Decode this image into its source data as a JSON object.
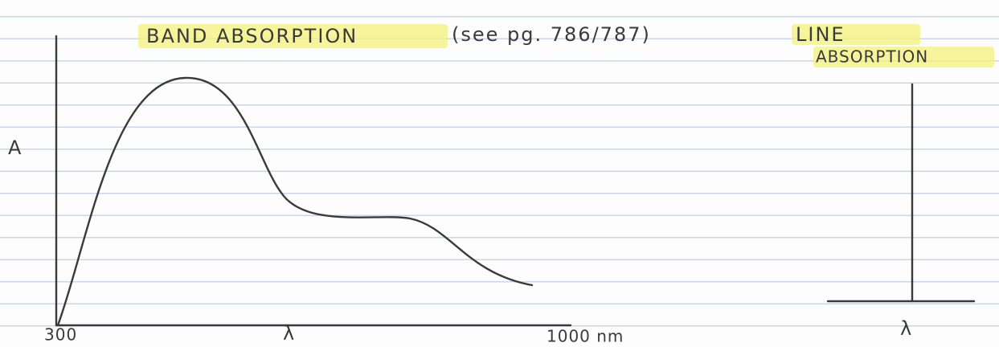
{
  "band": {
    "title": "BAND ABSORPTION",
    "note": "(see pg. 786/787)",
    "y_label": "A",
    "x_start": "300",
    "x_label": "λ",
    "x_end": "1000 nm"
  },
  "line": {
    "title_lines": [
      "LINE",
      "ABSORPTION"
    ],
    "x_label": "λ"
  }
}
